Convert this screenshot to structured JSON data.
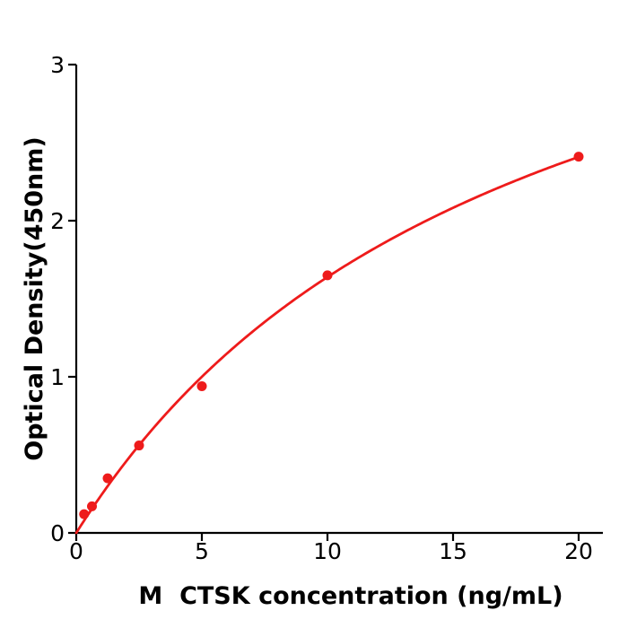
{
  "chart_data": {
    "type": "scatter",
    "title": "",
    "xlabel": "M  CTSK concentration (ng/mL)",
    "ylabel": "Optical Density(450nm)",
    "x": [
      0.3125,
      0.625,
      1.25,
      2.5,
      5,
      10,
      20
    ],
    "y": [
      0.12,
      0.17,
      0.35,
      0.56,
      0.94,
      1.65,
      2.41
    ],
    "xlim": [
      0,
      21
    ],
    "ylim": [
      0,
      3
    ],
    "xticks": [
      0,
      5,
      10,
      15,
      20
    ],
    "yticks": [
      0,
      1,
      2,
      3
    ],
    "grid": false,
    "legend": null,
    "marker_color": "#ee1b1b",
    "line_color": "#ee1b1b",
    "axis_color": "#000000",
    "fit": {
      "model": "michaelis_menten",
      "vmax": 4.54,
      "km": 17.7,
      "x_start": 0,
      "x_end": 20
    }
  }
}
